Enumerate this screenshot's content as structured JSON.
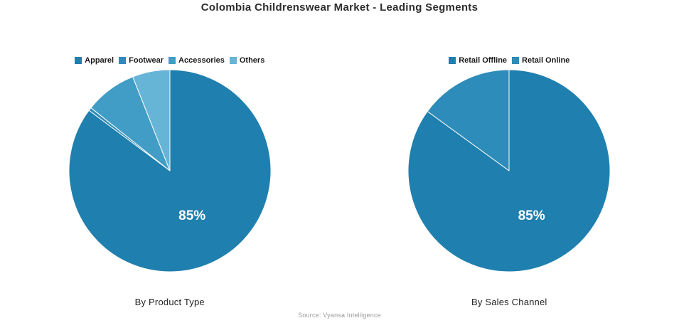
{
  "header": {
    "title": "Colombia Childrenswear Market - Leading Segments"
  },
  "footer": {
    "source": "Source: Vyansa Intelligence"
  },
  "style": {
    "slice_border_color": "#ffffff",
    "data_label_color": "#ffffff"
  },
  "chart_data": [
    {
      "type": "pie",
      "title": "By Product Type",
      "legend_position": "top",
      "start_angle_deg": 90,
      "direction": "clockwise",
      "label_radius_fraction": 0.49,
      "slices": [
        {
          "label": "Apparel",
          "value": 85.2,
          "color": "#1f7fae",
          "data_label": "85%"
        },
        {
          "label": "Footwear",
          "value": 0.5,
          "color": "#2d8cb9",
          "data_label": ""
        },
        {
          "label": "Accessories",
          "value": 8.3,
          "color": "#419dc5",
          "data_label": ""
        },
        {
          "label": "Others",
          "value": 6.0,
          "color": "#66b4d6",
          "data_label": ""
        }
      ]
    },
    {
      "type": "pie",
      "title": "By Sales Channel",
      "legend_position": "top",
      "start_angle_deg": 90,
      "direction": "clockwise",
      "label_radius_fraction": 0.49,
      "slices": [
        {
          "label": "Retail Offline",
          "value": 85,
          "color": "#1f7fae",
          "data_label": "85%"
        },
        {
          "label": "Retail Online",
          "value": 15,
          "color": "#2d8cb9",
          "data_label": ""
        }
      ]
    }
  ]
}
